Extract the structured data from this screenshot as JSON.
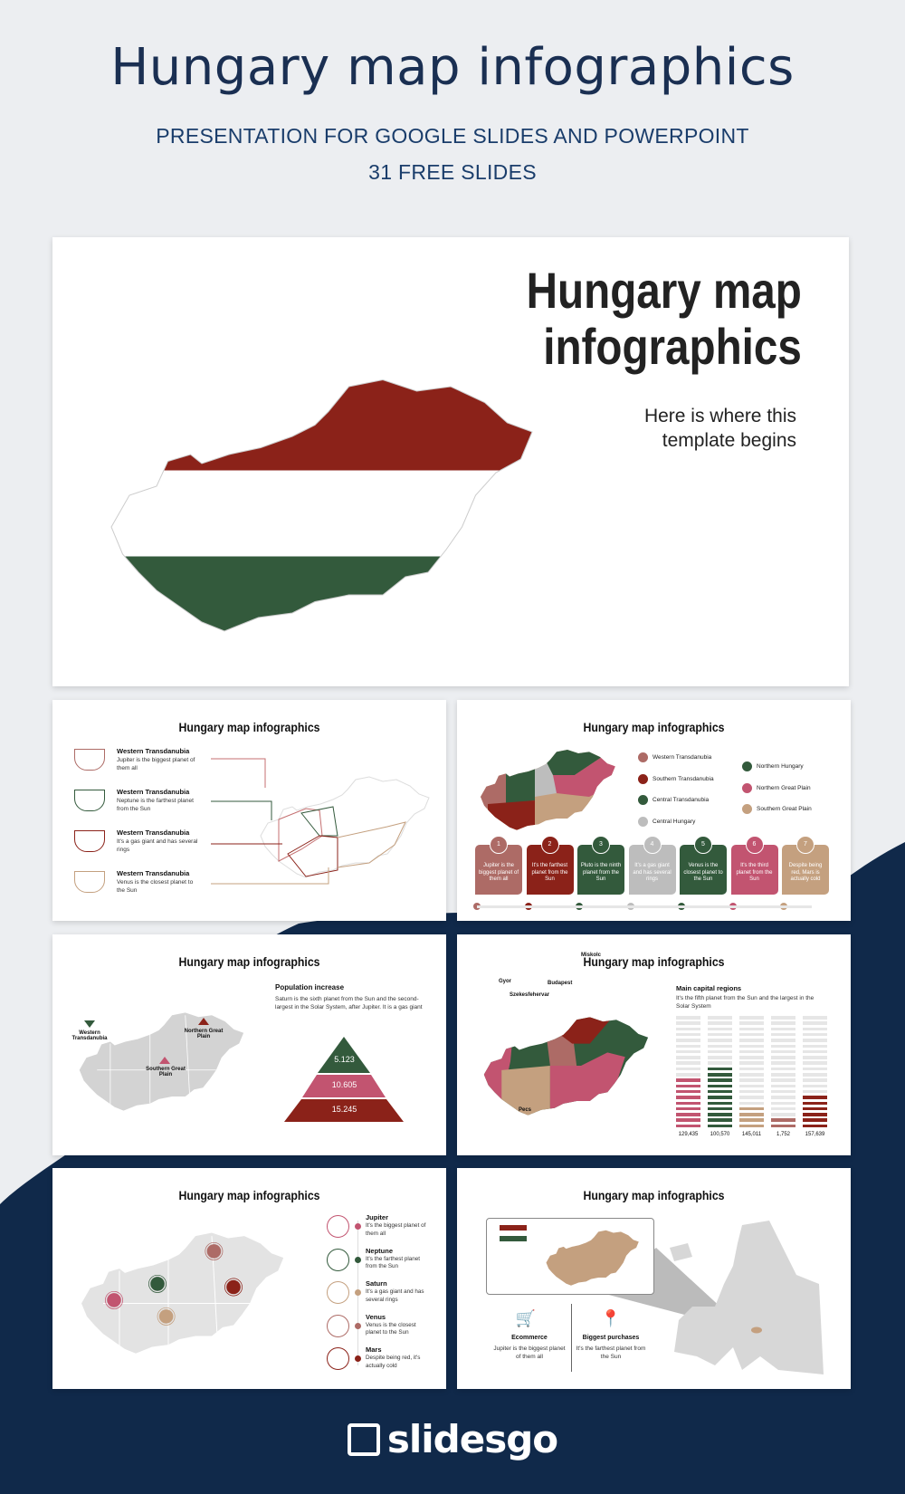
{
  "header": {
    "title": "Hungary map infographics",
    "subtitle": "PRESENTATION FOR GOOGLE SLIDES AND POWERPOINT",
    "slides_count": "31 FREE SLIDES"
  },
  "colors": {
    "red": "#8b2219",
    "green": "#335a3c",
    "pink": "#c25470",
    "tan": "#c4a07f",
    "rose": "#ad6b66",
    "gray": "#bdbdbd",
    "navy": "#10294a"
  },
  "cover": {
    "title_line1": "Hungary map",
    "title_line2": "infographics",
    "subtitle_line1": "Here is where this",
    "subtitle_line2": "template begins"
  },
  "slide_title": "Hungary map infographics",
  "slide2": {
    "items": [
      {
        "title": "Western Transdanubia",
        "text": "Jupiter is the biggest planet of them all",
        "icon": "noodle-bowl-icon"
      },
      {
        "title": "Western Transdanubia",
        "text": "Neptune is the farthest planet from the Sun",
        "icon": "roast-chicken-icon"
      },
      {
        "title": "Western Transdanubia",
        "text": "It's a gas giant and has several rings",
        "icon": "frying-pan-icon"
      },
      {
        "title": "Western Transdanubia",
        "text": "Venus is the closest planet to the Sun",
        "icon": "soup-bowl-icon"
      }
    ]
  },
  "slide3": {
    "legend": [
      "Western Transdanubia",
      "Southern Transdanubia",
      "Central Transdanubia",
      "Central Hungary",
      "Northern Hungary",
      "Northern Great Plain",
      "Southern Great Plain"
    ],
    "cards": [
      {
        "n": "1",
        "text": "Jupiter is the biggest planet of them all"
      },
      {
        "n": "2",
        "text": "It's the farthest planet from the Sun"
      },
      {
        "n": "3",
        "text": "Pluto is the ninth planet from the Sun"
      },
      {
        "n": "4",
        "text": "It's a gas giant and has several rings"
      },
      {
        "n": "5",
        "text": "Venus is the closest planet to the Sun"
      },
      {
        "n": "6",
        "text": "It's the third planet from the Sun"
      },
      {
        "n": "7",
        "text": "Despite being red, Mars is actually cold"
      }
    ]
  },
  "slide4": {
    "heading": "Population increase",
    "text": "Saturn is the sixth planet from the Sun and the second-largest in the Solar System, after Jupiter. It is a gas giant",
    "labels": [
      "Western Transdanubia",
      "Northern Great Plain",
      "Southern Great Plain"
    ],
    "pyramid": [
      "5.123",
      "10.605",
      "15.245"
    ]
  },
  "slide5": {
    "heading": "Main capital regions",
    "text": "It's the fifth planet from the Sun and the largest in the Solar System",
    "cities": [
      "Miskolc",
      "Gyor",
      "Budapest",
      "Szekesfehervar",
      "Pecs"
    ],
    "chart_data": {
      "type": "bar",
      "values_labels": [
        "129,435",
        "100,570",
        "145,011",
        "1,752",
        "157,639"
      ],
      "filled_segments": [
        9,
        11,
        4,
        2,
        6
      ],
      "total_segments": 20
    }
  },
  "slide6": {
    "items": [
      {
        "title": "Jupiter",
        "text": "It's the biggest planet of them all"
      },
      {
        "title": "Neptune",
        "text": "It's the farthest planet from the Sun"
      },
      {
        "title": "Saturn",
        "text": "It's a gas giant and has several rings"
      },
      {
        "title": "Venus",
        "text": "Venus is the closest planet to the Sun"
      },
      {
        "title": "Mars",
        "text": "Despite being red, it's actually cold"
      }
    ]
  },
  "slide7": {
    "features": [
      {
        "title": "Ecommerce",
        "text": "Jupiter is the biggest planet of them all"
      },
      {
        "title": "Biggest purchases",
        "text": "It's the farthest planet from the Sun"
      }
    ]
  },
  "brand": {
    "logo": "slidesgo"
  }
}
